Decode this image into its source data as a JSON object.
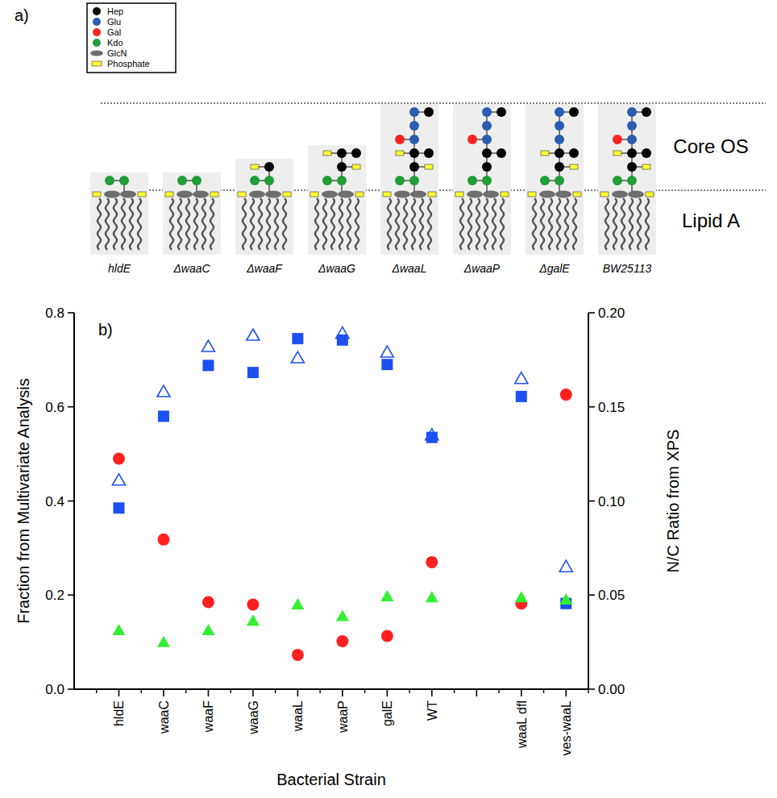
{
  "diagram": {
    "label": "a)",
    "legend": [
      {
        "label": "Hep",
        "color": "#000000",
        "shape": "circle"
      },
      {
        "label": "Glu",
        "color": "#2a5db0",
        "shape": "circle"
      },
      {
        "label": "Gal",
        "color": "#ff2222",
        "shape": "circle"
      },
      {
        "label": "Kdo",
        "color": "#1f9e3a",
        "shape": "circle"
      },
      {
        "label": "GlcN",
        "color": "#6e6e6e",
        "shape": "ellipse"
      },
      {
        "label": "Phosphate",
        "color": "#ffff33",
        "shape": "rect"
      }
    ],
    "regions": {
      "core": "Core OS",
      "lipid": "Lipid A"
    },
    "strains": [
      {
        "label": "hldE",
        "rows": [
          [
            [
              -1,
              "Kdo"
            ],
            [
              0,
              "Kdo"
            ]
          ]
        ]
      },
      {
        "label": "ΔwaaC",
        "rows": [
          [
            [
              -1,
              "Kdo"
            ],
            [
              0,
              "Kdo"
            ]
          ]
        ]
      },
      {
        "label": "ΔwaaF",
        "rows": [
          [
            [
              -1,
              "Kdo"
            ],
            [
              0,
              "Kdo"
            ]
          ],
          [
            [
              0,
              "Hep"
            ],
            [
              -1,
              "Phosphate"
            ]
          ]
        ]
      },
      {
        "label": "ΔwaaG",
        "rows": [
          [
            [
              -1,
              "Kdo"
            ],
            [
              0,
              "Kdo"
            ]
          ],
          [
            [
              0,
              "Hep"
            ],
            [
              1,
              "Phosphate"
            ]
          ],
          [
            [
              0,
              "Hep"
            ],
            [
              1,
              "Hep"
            ],
            [
              -1,
              "Phosphate"
            ]
          ]
        ]
      },
      {
        "label": "ΔwaaL",
        "rows": [
          [
            [
              -1,
              "Kdo"
            ],
            [
              0,
              "Kdo"
            ]
          ],
          [
            [
              0,
              "Hep"
            ],
            [
              1,
              "Phosphate"
            ]
          ],
          [
            [
              0,
              "Hep"
            ],
            [
              1,
              "Hep"
            ],
            [
              -1,
              "Phosphate"
            ]
          ],
          [
            [
              0,
              "Glu"
            ],
            [
              -1,
              "Gal"
            ]
          ],
          [
            [
              0,
              "Glu"
            ]
          ],
          [
            [
              0,
              "Glu"
            ],
            [
              1,
              "Hep"
            ]
          ]
        ]
      },
      {
        "label": "ΔwaaP",
        "rows": [
          [
            [
              -1,
              "Kdo"
            ],
            [
              0,
              "Kdo"
            ]
          ],
          [
            [
              0,
              "Hep"
            ]
          ],
          [
            [
              0,
              "Hep"
            ],
            [
              1,
              "Hep"
            ]
          ],
          [
            [
              0,
              "Glu"
            ],
            [
              -1,
              "Gal"
            ]
          ],
          [
            [
              0,
              "Glu"
            ]
          ],
          [
            [
              0,
              "Glu"
            ],
            [
              1,
              "Hep"
            ]
          ]
        ]
      },
      {
        "label": "ΔgalE",
        "rows": [
          [
            [
              -1,
              "Kdo"
            ],
            [
              0,
              "Kdo"
            ]
          ],
          [
            [
              0,
              "Hep"
            ],
            [
              1,
              "Phosphate"
            ]
          ],
          [
            [
              0,
              "Hep"
            ],
            [
              1,
              "Hep"
            ],
            [
              -1,
              "Phosphate"
            ]
          ],
          [
            [
              0,
              "Glu"
            ]
          ],
          [
            [
              0,
              "Glu"
            ]
          ],
          [
            [
              0,
              "Glu"
            ],
            [
              1,
              "Hep"
            ]
          ]
        ]
      },
      {
        "label": "BW25113",
        "rows": [
          [
            [
              -1,
              "Kdo"
            ],
            [
              0,
              "Kdo"
            ]
          ],
          [
            [
              0,
              "Hep"
            ],
            [
              1,
              "Phosphate"
            ]
          ],
          [
            [
              0,
              "Hep"
            ],
            [
              1,
              "Hep"
            ],
            [
              -1,
              "Phosphate"
            ]
          ],
          [
            [
              0,
              "Glu"
            ],
            [
              -1,
              "Gal"
            ]
          ],
          [
            [
              0,
              "Glu"
            ]
          ],
          [
            [
              0,
              "Glu"
            ],
            [
              1,
              "Hep"
            ]
          ]
        ]
      }
    ]
  },
  "chart_data": {
    "type": "scatter",
    "annotations": [
      "b)"
    ],
    "x_label": "Bacterial Strain",
    "y_label": "Fraction from Multivariate Analysis",
    "y2_label": "N/C Ratio from XPS",
    "categories": [
      "hldE",
      "waaC",
      "waaF",
      "waaG",
      "waaL",
      "waaP",
      "galE",
      "WT",
      null,
      "waaL dfl",
      "ves-waaL"
    ],
    "ylim": [
      0,
      0.8
    ],
    "yticks": [
      {
        "value": 0,
        "label": "0.0"
      },
      0.2,
      0.4,
      0.6,
      0.8
    ],
    "y2lim": [
      0,
      0.2
    ],
    "y2ticks": [
      {
        "value": 0,
        "label": "0.00"
      },
      0.05,
      {
        "value": 0.1,
        "label": "0.10"
      },
      0.15,
      {
        "value": 0.2,
        "label": "0.20"
      }
    ],
    "grid": false,
    "series": [
      {
        "color": "#1e4ff0",
        "marker": "square",
        "values": [
          0.385,
          0.58,
          0.688,
          0.673,
          0.745,
          0.742,
          0.69,
          0.535,
          null,
          0.622,
          0.182
        ]
      },
      {
        "color": "#ff2020",
        "marker": "circle",
        "values": [
          0.49,
          0.318,
          0.185,
          0.18,
          0.073,
          0.102,
          0.113,
          0.27,
          null,
          0.182,
          0.626
        ]
      },
      {
        "color": "#33ee33",
        "marker": "triangle",
        "values": [
          0.125,
          0.1,
          0.125,
          0.145,
          0.18,
          0.155,
          0.197,
          0.195,
          null,
          0.195,
          0.19
        ]
      },
      {
        "color": "#1e4ff0",
        "marker": "triangle-open",
        "axis": "y2",
        "values": [
          0.111,
          0.158,
          0.182,
          0.188,
          0.176,
          0.189,
          0.179,
          0.135,
          null,
          0.165,
          0.065
        ]
      }
    ]
  }
}
